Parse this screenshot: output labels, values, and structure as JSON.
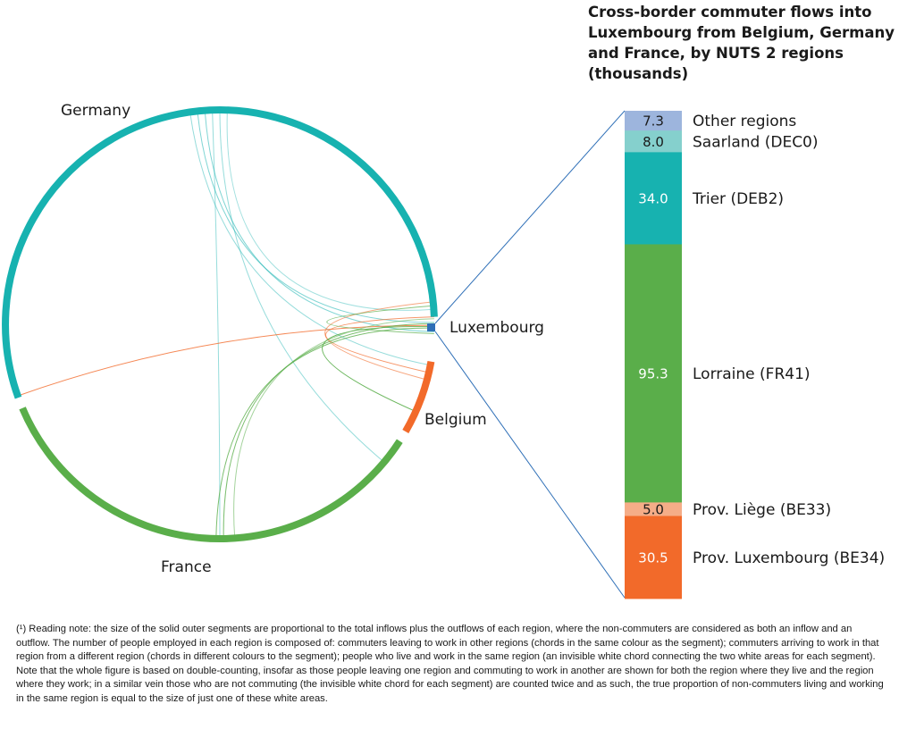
{
  "chart_data": {
    "type": "chord",
    "title": "Cross-border commuter flows into Luxembourg from Belgium, Germany and France, by NUTS 2 regions (thousands)",
    "regions": [
      {
        "name": "Germany",
        "color": "#17b2b0"
      },
      {
        "name": "Luxembourg",
        "color": "#2e6fb7"
      },
      {
        "name": "Belgium",
        "color": "#f26a2a"
      },
      {
        "name": "France",
        "color": "#5aae4a"
      }
    ],
    "breakdown": {
      "type": "stacked-bar",
      "unit": "thousands",
      "segments": [
        {
          "label": "Other regions",
          "value": 7.3,
          "color": "#9db5dd"
        },
        {
          "label": "Saarland (DEC0)",
          "value": 8.0,
          "color": "#85d0cd"
        },
        {
          "label": "Trier (DEB2)",
          "value": 34.0,
          "color": "#17b2b0"
        },
        {
          "label": "Lorraine (FR41)",
          "value": 95.3,
          "color": "#5aae4a"
        },
        {
          "label": "Prov. Liège (BE33)",
          "value": 5.0,
          "color": "#f5ad88"
        },
        {
          "label": "Prov. Luxembourg (BE34)",
          "value": 30.5,
          "color": "#f26a2a"
        }
      ]
    }
  },
  "footnote": "(¹) Reading note: the size of the solid outer segments are proportional to the total inflows plus the outflows of each region, where the non-commuters are considered as both an inflow and an outflow. The number of people employed in each region is composed of: commuters leaving to work in other regions (chords in the same colour as the segment); commuters arriving to work in that region from a different region (chords in different colours to the segment); people who live and work in the same region (an invisible white chord connecting the two white areas for each segment). Note that the whole figure is based on double-counting, insofar as those people leaving one region and commuting to work in another are shown for both the region where they live and the region where they work; in a similar vein those who are not commuting (the invisible white chord for each segment) are counted twice and as such, the true proportion of non-commuters living and working in the same region is equal to the size of just one of these white areas."
}
